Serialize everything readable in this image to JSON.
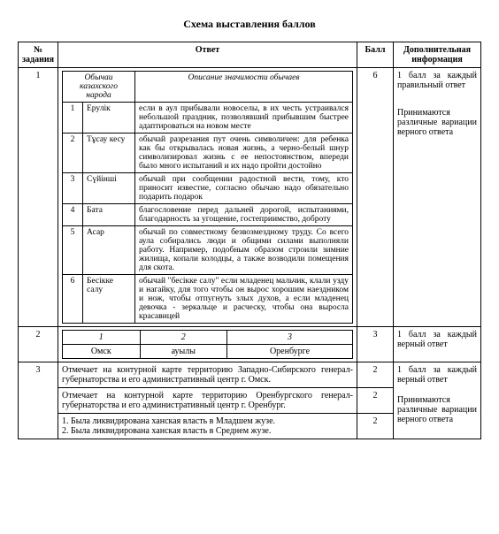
{
  "title": "Схема выставления баллов",
  "headers": {
    "num": "№ задания",
    "answer": "Ответ",
    "ball": "Балл",
    "info": "Дополнительная информация"
  },
  "task1": {
    "num": "1",
    "ball": "6",
    "info1": "1 балл за каждый правильный ответ",
    "info2": "Принимаются различные вариации верного ответа",
    "header_custom": "Обычаи казахского народа",
    "header_desc": "Описание значимости обычаев",
    "rows": [
      {
        "n": "1",
        "name": "Ерулік",
        "desc": "если в аул прибывали новоселы, в их честь устраивался небольшой праздник, позволявший прибывшим быстрее адаптироваться на новом месте"
      },
      {
        "n": "2",
        "name": "Тұсау кесу",
        "desc": "обычай разрезания пут очень символичен: для ребенка как бы открывалась новая жизнь, а черно-белый шнур символизировал жизнь с ее непостоянством, впереди было много испытаний и их надо пройти достойно"
      },
      {
        "n": "3",
        "name": "Сүйінші",
        "desc": "обычай при сообщении радостной вести, тому, кто приносит известие, согласно обычаю надо обязательно подарить подарок"
      },
      {
        "n": "4",
        "name": "Бата",
        "desc": "благословение перед дальней дорогой, испытаниями, благодарность за угощение, гостеприимство, доброту"
      },
      {
        "n": "5",
        "name": "Асар",
        "desc": "обычай по совместному безвозмездному труду. Со всего аула собирались люди и общими силами выполняли работу. Например, подобным образом строили зимние жилища, копали колодцы, а также возводили помещения для скота."
      },
      {
        "n": "6",
        "name": "Бесікке салу",
        "desc": "обычай \"бесікке салу\" если младенец мальчик, клали узду и нагайку, для того чтобы он вырос хорошим наездником и нож, чтобы отпугнуть злых духов, а если младенец девочка - зеркальце и расческу, чтобы она выросла красавицей"
      }
    ]
  },
  "task2": {
    "num": "2",
    "ball": "3",
    "info": "1 балл за каждый верный ответ",
    "h1": "1",
    "h2": "2",
    "h3": "3",
    "c1": "Омск",
    "c2": "ауылы",
    "c3": "Оренбурге"
  },
  "task3": {
    "num": "3",
    "r1": {
      "text": "Отмечает на контурной карте территорию Западно-Сибирского генерал-губернаторства и его административный центр г. Омск.",
      "ball": "2"
    },
    "r2": {
      "text": "Отмечает на контурной карте территорию Оренбургского генерал-губернаторства и его административный центр г. Оренбург.",
      "ball": "2"
    },
    "r3": {
      "text": "1. Была ликвидирована ханская власть в Младшем жузе.\n2. Была ликвидирована ханская власть в Среднем жузе.",
      "ball": "2"
    },
    "info1": "1 балл за каждый верный ответ",
    "info2": "Принимаются различные вариации верного ответа"
  }
}
